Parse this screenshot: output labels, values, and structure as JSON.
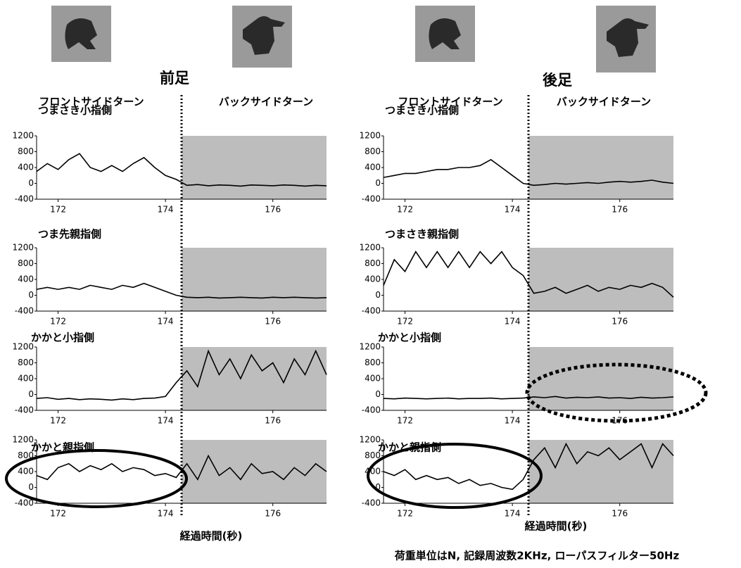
{
  "panels": [
    {
      "title": "前足",
      "front_label": "フロントサイドターン",
      "back_label": "バックサイドターン",
      "xlabel": "経過時間(秒)"
    },
    {
      "title": "後足",
      "front_label": "フロントサイドターン",
      "back_label": "バックサイドターン",
      "xlabel": "経過時間(秒)"
    }
  ],
  "note": "荷重単位はN, 記録周波数2KHz, ローパスフィルター50Hz",
  "chart_data": [
    {
      "type": "line",
      "title": "つまさき小指側",
      "color": "#000000",
      "x": [
        171.6,
        171.8,
        172.0,
        172.2,
        172.4,
        172.6,
        172.8,
        173.0,
        173.2,
        173.4,
        173.6,
        173.8,
        174.0,
        174.2,
        174.4,
        174.6,
        174.8,
        175.0,
        175.2,
        175.4,
        175.6,
        175.8,
        176.0,
        176.2,
        176.4,
        176.6,
        176.8,
        177.0
      ],
      "values": [
        300,
        500,
        350,
        600,
        750,
        400,
        300,
        450,
        300,
        500,
        650,
        400,
        200,
        100,
        -50,
        -30,
        -60,
        -40,
        -50,
        -70,
        -40,
        -50,
        -60,
        -40,
        -50,
        -70,
        -50,
        -60
      ],
      "xlim": [
        171.6,
        177.0
      ],
      "ylim": [
        -400,
        1200
      ],
      "xticks": [
        172,
        174,
        176
      ],
      "yticks": [
        -400,
        0,
        400,
        800,
        1200
      ],
      "shade_xlim": [
        174.3,
        177.0
      ]
    },
    {
      "type": "line",
      "title": "つま先親指側",
      "color": "#000000",
      "x": [
        171.6,
        171.8,
        172.0,
        172.2,
        172.4,
        172.6,
        172.8,
        173.0,
        173.2,
        173.4,
        173.6,
        173.8,
        174.0,
        174.2,
        174.4,
        174.6,
        174.8,
        175.0,
        175.2,
        175.4,
        175.6,
        175.8,
        176.0,
        176.2,
        176.4,
        176.6,
        176.8,
        177.0
      ],
      "values": [
        150,
        200,
        150,
        200,
        150,
        250,
        200,
        150,
        250,
        200,
        300,
        200,
        100,
        0,
        -50,
        -60,
        -50,
        -70,
        -60,
        -50,
        -60,
        -70,
        -50,
        -60,
        -50,
        -60,
        -70,
        -60
      ],
      "xlim": [
        171.6,
        177.0
      ],
      "ylim": [
        -400,
        1200
      ],
      "xticks": [
        172,
        174,
        176
      ],
      "yticks": [
        -400,
        0,
        400,
        800,
        1200
      ],
      "shade_xlim": [
        174.3,
        177.0
      ]
    },
    {
      "type": "line",
      "title": "かかと小指側",
      "color": "#000000",
      "x": [
        171.6,
        171.8,
        172.0,
        172.2,
        172.4,
        172.6,
        172.8,
        173.0,
        173.2,
        173.4,
        173.6,
        173.8,
        174.0,
        174.2,
        174.4,
        174.6,
        174.8,
        175.0,
        175.2,
        175.4,
        175.6,
        175.8,
        176.0,
        176.2,
        176.4,
        176.6,
        176.8,
        177.0
      ],
      "values": [
        -100,
        -80,
        -120,
        -100,
        -130,
        -110,
        -120,
        -140,
        -110,
        -130,
        -100,
        -90,
        -50,
        300,
        600,
        200,
        1100,
        500,
        900,
        400,
        1000,
        600,
        800,
        300,
        900,
        500,
        1100,
        500
      ],
      "xlim": [
        171.6,
        177.0
      ],
      "ylim": [
        -400,
        1200
      ],
      "xticks": [
        172,
        174,
        176
      ],
      "yticks": [
        -400,
        0,
        400,
        800,
        1200
      ],
      "shade_xlim": [
        174.3,
        177.0
      ]
    },
    {
      "type": "line",
      "title": "かかと親指側",
      "color": "#000000",
      "x": [
        171.6,
        171.8,
        172.0,
        172.2,
        172.4,
        172.6,
        172.8,
        173.0,
        173.2,
        173.4,
        173.6,
        173.8,
        174.0,
        174.2,
        174.4,
        174.6,
        174.8,
        175.0,
        175.2,
        175.4,
        175.6,
        175.8,
        176.0,
        176.2,
        176.4,
        176.6,
        176.8,
        177.0
      ],
      "values": [
        300,
        200,
        500,
        600,
        400,
        550,
        450,
        600,
        400,
        500,
        450,
        300,
        350,
        250,
        600,
        200,
        800,
        300,
        500,
        200,
        600,
        350,
        400,
        200,
        500,
        300,
        600,
        400
      ],
      "xlim": [
        171.6,
        177.0
      ],
      "ylim": [
        -400,
        1200
      ],
      "xticks": [
        172,
        174,
        176
      ],
      "yticks": [
        -400,
        0,
        400,
        800,
        1200
      ],
      "shade_xlim": [
        174.3,
        177.0
      ]
    },
    {
      "type": "line",
      "title": "つまさき小指側",
      "color": "#000000",
      "x": [
        171.6,
        171.8,
        172.0,
        172.2,
        172.4,
        172.6,
        172.8,
        173.0,
        173.2,
        173.4,
        173.6,
        173.8,
        174.0,
        174.2,
        174.4,
        174.6,
        174.8,
        175.0,
        175.2,
        175.4,
        175.6,
        175.8,
        176.0,
        176.2,
        176.4,
        176.6,
        176.8,
        177.0
      ],
      "values": [
        150,
        200,
        250,
        250,
        300,
        350,
        350,
        400,
        400,
        450,
        600,
        400,
        200,
        0,
        -50,
        -30,
        0,
        -20,
        0,
        20,
        0,
        30,
        50,
        30,
        50,
        80,
        30,
        0
      ],
      "xlim": [
        171.6,
        177.0
      ],
      "ylim": [
        -400,
        1200
      ],
      "xticks": [
        172,
        174,
        176
      ],
      "yticks": [
        -400,
        0,
        400,
        800,
        1200
      ],
      "shade_xlim": [
        174.3,
        177.0
      ]
    },
    {
      "type": "line",
      "title": "つまさき親指側",
      "color": "#000000",
      "x": [
        171.6,
        171.8,
        172.0,
        172.2,
        172.4,
        172.6,
        172.8,
        173.0,
        173.2,
        173.4,
        173.6,
        173.8,
        174.0,
        174.2,
        174.4,
        174.6,
        174.8,
        175.0,
        175.2,
        175.4,
        175.6,
        175.8,
        176.0,
        176.2,
        176.4,
        176.6,
        176.8,
        177.0
      ],
      "values": [
        250,
        900,
        600,
        1100,
        700,
        1100,
        700,
        1100,
        700,
        1100,
        800,
        1100,
        700,
        500,
        50,
        100,
        200,
        50,
        150,
        250,
        100,
        200,
        150,
        250,
        200,
        300,
        200,
        -50
      ],
      "xlim": [
        171.6,
        177.0
      ],
      "ylim": [
        -400,
        1200
      ],
      "xticks": [
        172,
        174,
        176
      ],
      "yticks": [
        -400,
        0,
        400,
        800,
        1200
      ],
      "shade_xlim": [
        174.3,
        177.0
      ]
    },
    {
      "type": "line",
      "title": "かかと小指側",
      "color": "#000000",
      "x": [
        171.6,
        171.8,
        172.0,
        172.2,
        172.4,
        172.6,
        172.8,
        173.0,
        173.2,
        173.4,
        173.6,
        173.8,
        174.0,
        174.2,
        174.4,
        174.6,
        174.8,
        175.0,
        175.2,
        175.4,
        175.6,
        175.8,
        176.0,
        176.2,
        176.4,
        176.6,
        176.8,
        177.0
      ],
      "values": [
        -100,
        -110,
        -90,
        -100,
        -110,
        -100,
        -90,
        -110,
        -100,
        -100,
        -90,
        -110,
        -100,
        -90,
        -60,
        -80,
        -50,
        -90,
        -70,
        -80,
        -60,
        -90,
        -80,
        -100,
        -70,
        -90,
        -80,
        -60
      ],
      "xlim": [
        171.6,
        177.0
      ],
      "ylim": [
        -400,
        1200
      ],
      "xticks": [
        172,
        174,
        176
      ],
      "yticks": [
        -400,
        0,
        400,
        800,
        1200
      ],
      "shade_xlim": [
        174.3,
        177.0
      ]
    },
    {
      "type": "line",
      "title": "かかと親指側",
      "color": "#000000",
      "x": [
        171.6,
        171.8,
        172.0,
        172.2,
        172.4,
        172.6,
        172.8,
        173.0,
        173.2,
        173.4,
        173.6,
        173.8,
        174.0,
        174.2,
        174.4,
        174.6,
        174.8,
        175.0,
        175.2,
        175.4,
        175.6,
        175.8,
        176.0,
        176.2,
        176.4,
        176.6,
        176.8,
        177.0
      ],
      "values": [
        400,
        300,
        450,
        200,
        300,
        200,
        250,
        100,
        200,
        50,
        100,
        0,
        -50,
        200,
        700,
        1000,
        500,
        1100,
        600,
        900,
        800,
        1000,
        700,
        900,
        1100,
        500,
        1100,
        800
      ],
      "xlim": [
        171.6,
        177.0
      ],
      "ylim": [
        -400,
        1200
      ],
      "xticks": [
        172,
        174,
        176
      ],
      "yticks": [
        -400,
        0,
        400,
        800,
        1200
      ],
      "shade_xlim": [
        174.3,
        177.0
      ]
    }
  ]
}
